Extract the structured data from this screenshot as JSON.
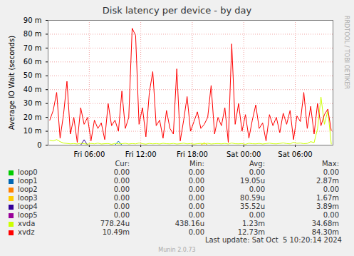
{
  "chart_data": {
    "type": "line",
    "title": "Disk latency per device - by day",
    "y_label": "Average IO Wait (seconds)",
    "grid": true,
    "legend": "bottom",
    "x": [
      1.4,
      1.8,
      2.2,
      2.6,
      3.0,
      3.4,
      3.8,
      4.2,
      4.6,
      5.0,
      5.4,
      5.8,
      6.2,
      6.6,
      7.0,
      7.4,
      7.8,
      8.2,
      8.6,
      9.0,
      9.4,
      9.8,
      10.2,
      10.6,
      11.0,
      11.4,
      11.8,
      12.2,
      12.6,
      13.0,
      13.4,
      13.8,
      14.2,
      14.6,
      15.0,
      15.4,
      15.8,
      16.2,
      16.6,
      17.0,
      17.4,
      17.8,
      18.2,
      18.6,
      19.0,
      19.4,
      19.8,
      20.2,
      20.6,
      21.0,
      21.4,
      21.8,
      22.2,
      22.6,
      23.0,
      23.4,
      23.8,
      24.2,
      24.6,
      25.0,
      25.4,
      25.8,
      26.2,
      26.6,
      27.0,
      27.4,
      27.8,
      28.2,
      28.6,
      29.0,
      29.4,
      29.8,
      30.2,
      30.6,
      31.0,
      31.4,
      31.8,
      32.2,
      32.6,
      33.0,
      33.4,
      33.8,
      34.2
    ],
    "xlim": [
      1.2,
      34.4
    ],
    "xticks": [
      {
        "value": 6,
        "label": "Fri 06:00"
      },
      {
        "value": 12,
        "label": "Fri 12:00"
      },
      {
        "value": 18,
        "label": "Fri 18:00"
      },
      {
        "value": 24,
        "label": "Sat 00:00"
      },
      {
        "value": 30,
        "label": "Sat 06:00"
      }
    ],
    "ylim": [
      0,
      0.09
    ],
    "yticks": [
      0,
      {
        "value": 0.01,
        "label": "10 m"
      },
      {
        "value": 0.02,
        "label": "20 m"
      },
      {
        "value": 0.03,
        "label": "30 m"
      },
      {
        "value": 0.04,
        "label": "40 m"
      },
      {
        "value": 0.05,
        "label": "50 m"
      },
      {
        "value": 0.06,
        "label": "60 m"
      },
      {
        "value": 0.07,
        "label": "70 m"
      },
      {
        "value": 0.08,
        "label": "80 m"
      },
      {
        "value": 0.09,
        "label": "90 m"
      }
    ],
    "legend_columns": [
      "Cur:",
      "Min:",
      "Avg:",
      "Max:"
    ],
    "series": [
      {
        "name": "loop0",
        "color": "#00cc00",
        "stats": [
          "0.00",
          "0.00",
          "0.00",
          "0.00"
        ],
        "values": [
          0,
          0,
          0,
          0,
          0,
          0,
          0,
          0,
          0,
          0,
          0,
          0,
          0,
          0,
          0,
          0,
          0,
          0,
          0,
          0,
          0,
          0,
          0,
          0,
          0,
          0,
          0,
          0,
          0,
          0,
          0,
          0,
          0,
          0,
          0,
          0,
          0,
          0,
          0,
          0,
          0,
          0,
          0,
          0,
          0,
          0,
          0,
          0,
          0,
          0,
          0,
          0,
          0,
          0,
          0,
          0,
          0,
          0,
          0,
          0,
          0,
          0,
          0,
          0,
          0,
          0,
          0,
          0,
          0,
          0,
          0,
          0,
          0,
          0,
          0,
          0,
          0,
          0,
          0,
          0,
          0,
          0,
          0
        ]
      },
      {
        "name": "loop1",
        "color": "#0066b3",
        "stats": [
          "0.00",
          "0.00",
          "19.05u",
          "2.87m"
        ],
        "values": [
          0,
          0,
          0,
          0,
          0,
          0,
          0,
          0,
          0,
          0,
          0,
          0,
          0,
          0,
          0,
          0,
          0,
          0,
          0,
          0,
          0.00287,
          0,
          0,
          0,
          0,
          0,
          0,
          0,
          0,
          0,
          0,
          0,
          0,
          0,
          0,
          0,
          0,
          0,
          0,
          0,
          0,
          0,
          0,
          0,
          0,
          0,
          0,
          0,
          0,
          0,
          0,
          0,
          0,
          0,
          0,
          0,
          0,
          0,
          0,
          0,
          0,
          0,
          0,
          0,
          0,
          0,
          0,
          0,
          0,
          0,
          0,
          0,
          0,
          0,
          0,
          0,
          0,
          0,
          0,
          0,
          0,
          0,
          0
        ]
      },
      {
        "name": "loop2",
        "color": "#ff8000",
        "stats": [
          "0.00",
          "0.00",
          "0.00",
          "0.00"
        ],
        "values": [
          0,
          0,
          0,
          0,
          0,
          0,
          0,
          0,
          0,
          0,
          0,
          0,
          0,
          0,
          0,
          0,
          0,
          0,
          0,
          0,
          0,
          0,
          0,
          0,
          0,
          0,
          0,
          0,
          0,
          0,
          0,
          0,
          0,
          0,
          0,
          0,
          0,
          0,
          0,
          0,
          0,
          0,
          0,
          0,
          0,
          0,
          0,
          0,
          0,
          0,
          0,
          0,
          0,
          0,
          0,
          0,
          0,
          0,
          0,
          0,
          0,
          0,
          0,
          0,
          0,
          0,
          0,
          0,
          0,
          0,
          0,
          0,
          0,
          0,
          0,
          0,
          0,
          0,
          0,
          0,
          0,
          0,
          0
        ]
      },
      {
        "name": "loop3",
        "color": "#ffcc00",
        "stats": [
          "0.00",
          "0.00",
          "80.59u",
          "1.67m"
        ],
        "values": [
          0,
          0,
          0,
          0,
          0,
          0,
          0,
          0,
          0,
          0,
          0,
          0,
          0,
          0,
          0,
          0,
          0,
          0,
          0,
          0,
          0,
          0,
          0,
          0,
          0,
          0,
          0,
          0,
          0,
          0,
          0,
          0,
          0,
          0,
          0,
          0,
          0,
          0,
          0,
          0,
          0,
          0,
          0,
          0,
          0,
          0.00167,
          0,
          0,
          0,
          0,
          0,
          0,
          0,
          0,
          0,
          0,
          0,
          0,
          0,
          0,
          0,
          0,
          0,
          0,
          0,
          0,
          0,
          0,
          0,
          0,
          0,
          0,
          0,
          0,
          0,
          0,
          0,
          0,
          0,
          0,
          0,
          0,
          0
        ]
      },
      {
        "name": "loop4",
        "color": "#330099",
        "stats": [
          "0.00",
          "0.00",
          "35.52u",
          "3.89m"
        ],
        "values": [
          0,
          0,
          0,
          0,
          0,
          0,
          0,
          0,
          0,
          0,
          0.00389,
          0,
          0,
          0,
          0,
          0,
          0,
          0,
          0,
          0,
          0,
          0,
          0,
          0,
          0,
          0,
          0,
          0,
          0,
          0,
          0,
          0,
          0,
          0,
          0,
          0,
          0,
          0,
          0,
          0,
          0,
          0,
          0,
          0,
          0,
          0,
          0,
          0,
          0,
          0,
          0,
          0,
          0,
          0,
          0,
          0,
          0,
          0,
          0,
          0,
          0,
          0,
          0,
          0,
          0,
          0,
          0,
          0,
          0,
          0,
          0,
          0,
          0,
          0,
          0,
          0,
          0,
          0,
          0,
          0,
          0,
          0,
          0
        ]
      },
      {
        "name": "loop5",
        "color": "#990099",
        "stats": [
          "0.00",
          "0.00",
          "0.00",
          "0.00"
        ],
        "values": [
          0,
          0,
          0,
          0,
          0,
          0,
          0,
          0,
          0,
          0,
          0,
          0,
          0,
          0,
          0,
          0,
          0,
          0,
          0,
          0,
          0,
          0,
          0,
          0,
          0,
          0,
          0,
          0,
          0,
          0,
          0,
          0,
          0,
          0,
          0,
          0,
          0,
          0,
          0,
          0,
          0,
          0,
          0,
          0,
          0,
          0,
          0,
          0,
          0,
          0,
          0,
          0,
          0,
          0,
          0,
          0,
          0,
          0,
          0,
          0,
          0,
          0,
          0,
          0,
          0,
          0,
          0,
          0,
          0,
          0,
          0,
          0,
          0,
          0,
          0,
          0,
          0,
          0,
          0,
          0,
          0,
          0,
          0
        ]
      },
      {
        "name": "xvda",
        "color": "#ccff00",
        "stats": [
          "778.24u",
          "438.16u",
          "1.23m",
          "34.68m"
        ],
        "values": [
          0.0035,
          0.003,
          0.004,
          0.0025,
          0.0015,
          0.0012,
          0.0009,
          0.0011,
          0.0008,
          0.0013,
          0.001,
          0.0007,
          0.0012,
          0.0009,
          0.0014,
          0.0008,
          0.001,
          0.0011,
          0.0006,
          0.0012,
          0.0009,
          0.001,
          0.0013,
          0.0008,
          0.0011,
          0.0009,
          0.0015,
          0.001,
          0.0007,
          0.0012,
          0.0009,
          0.0011,
          0.0008,
          0.0013,
          0.001,
          0.0009,
          0.0012,
          0.0008,
          0.001,
          0.0014,
          0.0009,
          0.0011,
          0.0007,
          0.001,
          0.0012,
          0.0009,
          0.0013,
          0.0008,
          0.001,
          0.0011,
          0.0009,
          0.0012,
          0.0008,
          0.0015,
          0.001,
          0.0009,
          0.0011,
          0.0006,
          0.0013,
          0.001,
          0.0009,
          0.0012,
          0.0008,
          0.0011,
          0.0014,
          0.001,
          0.0009,
          0.0012,
          0.0016,
          0.0011,
          0.0009,
          0.002,
          0.0013,
          0.0015,
          0.001,
          0.0012,
          0.0025,
          0.0018,
          0.012,
          0.03468,
          0.015,
          0.025,
          0.000778
        ]
      },
      {
        "name": "xvdz",
        "color": "#ff0000",
        "stats": [
          "10.49m",
          "0.00",
          "12.73m",
          "84.30m"
        ],
        "values": [
          0.018,
          0.025,
          0.038,
          0.005,
          0.022,
          0.046,
          0.008,
          0.02,
          0.002,
          0.027,
          0.015,
          0.02,
          0.003,
          0.018,
          0.012,
          0.016,
          0.004,
          0.03,
          0.014,
          0.018,
          0.01,
          0.039,
          0.012,
          0.02,
          0.0843,
          0.079,
          0.015,
          0.027,
          0.006,
          0.038,
          0.053,
          0.014,
          0.018,
          0.005,
          0.025,
          0.012,
          0.008,
          0.055,
          0.003,
          0.018,
          0.035,
          0.01,
          0.017,
          0.024,
          0.012,
          0.015,
          0.02,
          0.043,
          0.008,
          0.02,
          0.014,
          0.027,
          0.002,
          0.073,
          0.015,
          0.03,
          0.01,
          0.022,
          0.005,
          0.018,
          0.029,
          0.012,
          0.016,
          0.003,
          0.022,
          0.014,
          0.02,
          0.009,
          0.023,
          0.015,
          0.025,
          0.004,
          0.021,
          0.017,
          0.038,
          0.012,
          0.028,
          0.008,
          0.03,
          0.014,
          0.022,
          0.026,
          0.01049
        ]
      }
    ],
    "last_update": "Last update: Sat Oct  5 10:20:14 2024",
    "footer": "Munin 2.0.73",
    "watermark": "RRDTOOL / TOBI OETIKER"
  }
}
